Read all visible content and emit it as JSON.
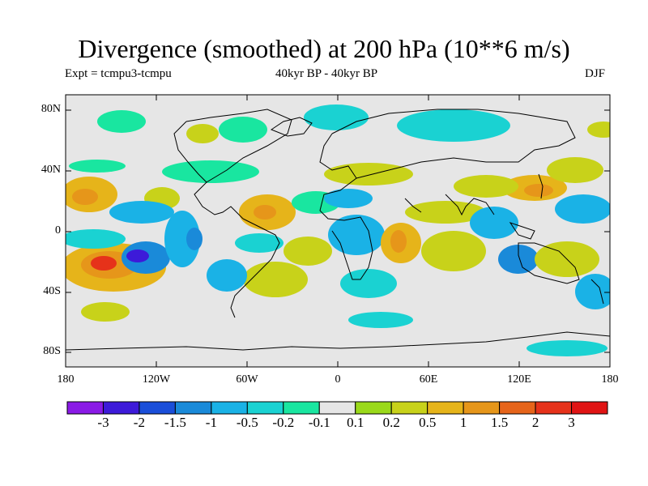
{
  "title": "Divergence (smoothed) at 200 hPa (10**6 m/s)",
  "subtitle_left": "Expt = tcmpu3-tcmpu",
  "subtitle_center": "40kyr BP - 40kyr BP",
  "subtitle_right": "DJF",
  "map": {
    "lat_labels": [
      "80N",
      "40N",
      "0",
      "40S",
      "80S"
    ],
    "lon_labels": [
      "180",
      "120W",
      "60W",
      "0",
      "60E",
      "120E",
      "180"
    ],
    "background_color": "#e6e6e6"
  },
  "colorbar": {
    "labels": [
      "-3",
      "-2",
      "-1.5",
      "-1",
      "-0.5",
      "-0.2",
      "-0.1",
      "0.1",
      "0.2",
      "0.5",
      "1",
      "1.5",
      "2",
      "3"
    ],
    "colors": [
      "#8a1ae6",
      "#3d1ad9",
      "#1a4ed9",
      "#1a8ad9",
      "#1ab2e6",
      "#1ad2d2",
      "#19e6a0",
      "#e6e6e6",
      "#9ad91a",
      "#c8d21a",
      "#e6b41a",
      "#e6961a",
      "#e6641a",
      "#e6321a",
      "#e01414"
    ]
  }
}
